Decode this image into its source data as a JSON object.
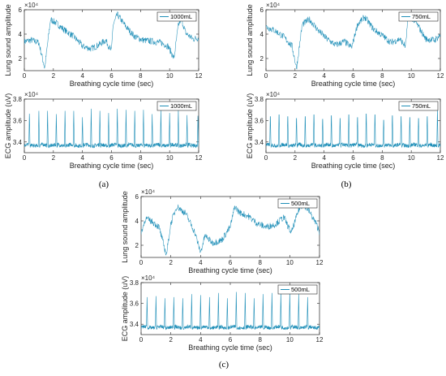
{
  "captions": [
    "(a)",
    "(b)",
    "(c)"
  ],
  "colors": {
    "signal": "#1f8fb8",
    "axis": "#262626",
    "legend_border": "#262626"
  },
  "chart_data": [
    {
      "panel": "(a)",
      "position": "top",
      "type": "line",
      "xlabel": "Breathing cycle time (sec)",
      "ylabel": "Lung sound amplitude",
      "exponent_label": "×10⁴",
      "xlim": [
        0,
        12
      ],
      "ylim": [
        1,
        6
      ],
      "xticks": [
        "0",
        "2",
        "4",
        "6",
        "8",
        "10",
        "12"
      ],
      "yticks": [
        "2",
        "4",
        "6"
      ],
      "series": [
        {
          "name": "1000mL",
          "x": [
            0,
            0.5,
            1.0,
            1.4,
            1.6,
            1.8,
            2.2,
            2.8,
            3.3,
            3.8,
            4.0,
            4.6,
            5.1,
            5.6,
            6.0,
            6.1,
            6.4,
            7.0,
            7.6,
            8.2,
            8.8,
            9.4,
            9.9,
            10.3,
            10.6,
            10.8,
            11.1,
            11.6,
            12.0
          ],
          "y": [
            3.4,
            3.5,
            3.3,
            1.2,
            3.2,
            5.2,
            4.9,
            4.3,
            3.9,
            3.3,
            3.0,
            2.8,
            3.1,
            3.5,
            2.6,
            4.7,
            5.6,
            4.6,
            3.8,
            3.5,
            3.4,
            3.3,
            3.0,
            2.0,
            4.7,
            5.3,
            4.1,
            3.6,
            3.7
          ]
        }
      ]
    },
    {
      "panel": "(a)",
      "position": "bottom",
      "type": "line",
      "xlabel": "Breathing cycle time (sec)",
      "ylabel": "ECG amplitude (uV)",
      "exponent_label": "×10⁴",
      "xlim": [
        0,
        12
      ],
      "ylim": [
        3.3,
        3.8
      ],
      "xticks": [
        "0",
        "2",
        "4",
        "6",
        "8",
        "10",
        "12"
      ],
      "yticks": [
        "3.4",
        "3.6",
        "3.8"
      ],
      "series": [
        {
          "name": "1000mL",
          "baseline": 3.37,
          "peak_times": [
            0.35,
            1.0,
            1.6,
            2.2,
            2.8,
            3.4,
            4.0,
            4.6,
            5.2,
            5.8,
            6.4,
            7.0,
            7.6,
            8.2,
            8.8,
            9.4,
            10.0,
            10.6,
            11.2,
            11.95
          ],
          "peak_values": [
            3.69,
            3.69,
            3.69,
            3.66,
            3.69,
            3.69,
            3.63,
            3.71,
            3.69,
            3.67,
            3.71,
            3.7,
            3.69,
            3.7,
            3.66,
            3.7,
            3.67,
            3.7,
            3.65,
            3.67
          ]
        }
      ]
    },
    {
      "panel": "(b)",
      "position": "top",
      "type": "line",
      "xlabel": "Breathing cycle time (sec)",
      "ylabel": "Lung sound amplitude",
      "exponent_label": "×10⁴",
      "xlim": [
        0,
        12
      ],
      "ylim": [
        1,
        6
      ],
      "xticks": [
        "0",
        "2",
        "4",
        "6",
        "8",
        "10",
        "12"
      ],
      "yticks": [
        "2",
        "4",
        "6"
      ],
      "series": [
        {
          "name": "750mL",
          "x": [
            0,
            0.6,
            1.2,
            1.8,
            2.1,
            2.5,
            3.0,
            3.6,
            4.2,
            4.8,
            5.4,
            5.9,
            6.3,
            6.8,
            7.4,
            8.0,
            8.6,
            9.2,
            9.6,
            9.8,
            10.3,
            11.0,
            11.6,
            12.0
          ],
          "y": [
            4.6,
            4.3,
            3.8,
            3.0,
            1.2,
            4.8,
            5.2,
            4.3,
            3.6,
            3.1,
            3.4,
            2.9,
            4.8,
            5.4,
            4.4,
            3.9,
            3.3,
            3.6,
            3.0,
            5.6,
            5.0,
            3.6,
            3.5,
            3.9
          ]
        }
      ]
    },
    {
      "panel": "(b)",
      "position": "bottom",
      "type": "line",
      "xlabel": "Breathing cycle time (sec)",
      "ylabel": "ECG amplitude (uV)",
      "exponent_label": "×10⁴",
      "xlim": [
        0,
        12
      ],
      "ylim": [
        3.3,
        3.8
      ],
      "xticks": [
        "0",
        "2",
        "4",
        "6",
        "8",
        "10",
        "12"
      ],
      "yticks": [
        "3.4",
        "3.6",
        "3.8"
      ],
      "series": [
        {
          "name": "750mL",
          "baseline": 3.37,
          "peak_times": [
            0.3,
            0.9,
            1.5,
            2.1,
            2.7,
            3.3,
            3.9,
            4.5,
            5.1,
            5.7,
            6.3,
            6.9,
            7.5,
            8.1,
            8.7,
            9.3,
            9.9,
            10.5,
            11.1,
            11.8
          ],
          "peak_values": [
            3.69,
            3.71,
            3.69,
            3.67,
            3.69,
            3.71,
            3.66,
            3.7,
            3.67,
            3.71,
            3.68,
            3.72,
            3.71,
            3.65,
            3.7,
            3.69,
            3.68,
            3.67,
            3.69,
            3.71
          ]
        }
      ]
    },
    {
      "panel": "(c)",
      "position": "top",
      "type": "line",
      "xlabel": "Breathing cycle time (sec)",
      "ylabel": "Lung sound amplitude",
      "exponent_label": "×10⁴",
      "xlim": [
        0,
        12
      ],
      "ylim": [
        1,
        6
      ],
      "xticks": [
        "0",
        "2",
        "4",
        "6",
        "8",
        "10",
        "12"
      ],
      "yticks": [
        "2",
        "4",
        "6"
      ],
      "series": [
        {
          "name": "500mL",
          "x": [
            0,
            0.3,
            0.8,
            1.2,
            1.7,
            2.0,
            2.4,
            3.0,
            3.6,
            4.0,
            4.3,
            4.8,
            5.4,
            6.0,
            6.3,
            6.6,
            7.2,
            7.8,
            8.4,
            9.0,
            9.6,
            10.1,
            10.6,
            10.9,
            11.3,
            11.8,
            12.0
          ],
          "y": [
            3.0,
            4.2,
            3.9,
            3.5,
            1.2,
            3.8,
            5.2,
            4.6,
            3.1,
            1.4,
            2.8,
            2.2,
            2.4,
            3.5,
            5.2,
            4.7,
            4.4,
            3.8,
            3.5,
            3.7,
            4.3,
            3.0,
            4.9,
            5.4,
            4.8,
            3.7,
            3.1
          ]
        }
      ]
    },
    {
      "panel": "(c)",
      "position": "bottom",
      "type": "line",
      "xlabel": "Breathing cycle time (sec)",
      "ylabel": "ECG amplitude (uV)",
      "exponent_label": "×10⁴",
      "xlim": [
        0,
        12
      ],
      "ylim": [
        3.3,
        3.8
      ],
      "xticks": [
        "0",
        "2",
        "4",
        "6",
        "8",
        "10",
        "12"
      ],
      "yticks": [
        "3.4",
        "3.6",
        "3.8"
      ],
      "series": [
        {
          "name": "500mL",
          "baseline": 3.37,
          "peak_times": [
            0.4,
            1.0,
            1.6,
            2.2,
            2.8,
            3.4,
            4.0,
            4.6,
            5.2,
            5.8,
            6.4,
            7.0,
            7.6,
            8.2,
            8.8,
            9.4,
            10.0,
            10.6,
            11.2
          ],
          "peak_values": [
            3.66,
            3.67,
            3.65,
            3.66,
            3.65,
            3.69,
            3.68,
            3.66,
            3.7,
            3.65,
            3.71,
            3.7,
            3.65,
            3.69,
            3.7,
            3.7,
            3.71,
            3.69,
            3.66
          ]
        }
      ]
    }
  ]
}
